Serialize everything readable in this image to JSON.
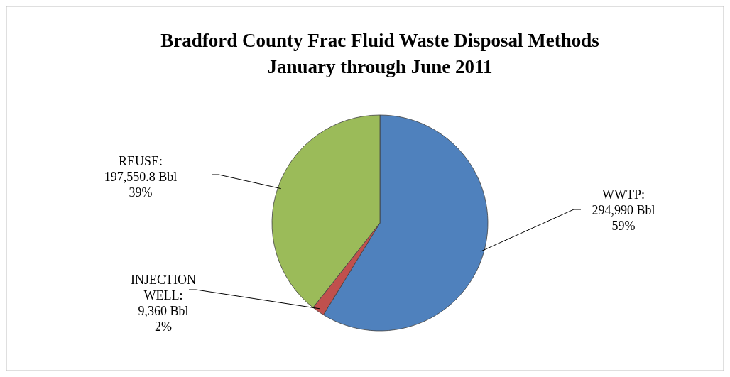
{
  "chart_data": {
    "type": "pie",
    "title": "Bradford County Frac Fluid Waste Disposal Methods\nJanuary through June 2011",
    "categories": [
      "WWTP",
      "INJECTION\nWELL",
      "REUSE"
    ],
    "values": [
      294990,
      9360,
      197550.8
    ],
    "colors": [
      "#4f81bd",
      "#c0504d",
      "#9bbb59"
    ],
    "value_labels": [
      ":\n294,990 Bbl\n59%",
      ":\n9,360 Bbl\n2%",
      ":\n197,550.8 Bbl\n39%"
    ]
  }
}
